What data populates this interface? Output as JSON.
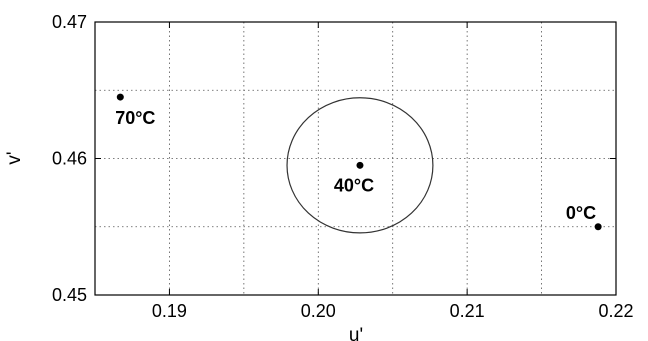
{
  "chart_data": {
    "type": "scatter",
    "title": "",
    "xlabel": "u'",
    "ylabel": "v'",
    "xlim": [
      0.185,
      0.22
    ],
    "ylim": [
      0.45,
      0.47
    ],
    "x_ticks": [
      0.19,
      0.2,
      0.21,
      0.22
    ],
    "x_tick_labels": [
      "0.19",
      "0.20",
      "0.21",
      "0.22"
    ],
    "y_ticks": [
      0.45,
      0.46,
      0.47
    ],
    "y_tick_labels": [
      "0.45",
      "0.46",
      "0.47"
    ],
    "grid": true,
    "grid_x": [
      0.19,
      0.195,
      0.2,
      0.205,
      0.21,
      0.215
    ],
    "grid_y": [
      0.455,
      0.46,
      0.465
    ],
    "points": [
      {
        "x": 0.1867,
        "y": 0.4645,
        "label": "70°C"
      },
      {
        "x": 0.2028,
        "y": 0.4595,
        "label": "40°C"
      },
      {
        "x": 0.2188,
        "y": 0.455,
        "label": "0°C"
      }
    ],
    "ellipse": {
      "cx": 0.2028,
      "cy": 0.4595,
      "rx": 0.0049,
      "ry": 0.00495
    },
    "colors": {
      "marker": "#000000",
      "grid": "#555555",
      "ellipse": "#333333"
    }
  }
}
